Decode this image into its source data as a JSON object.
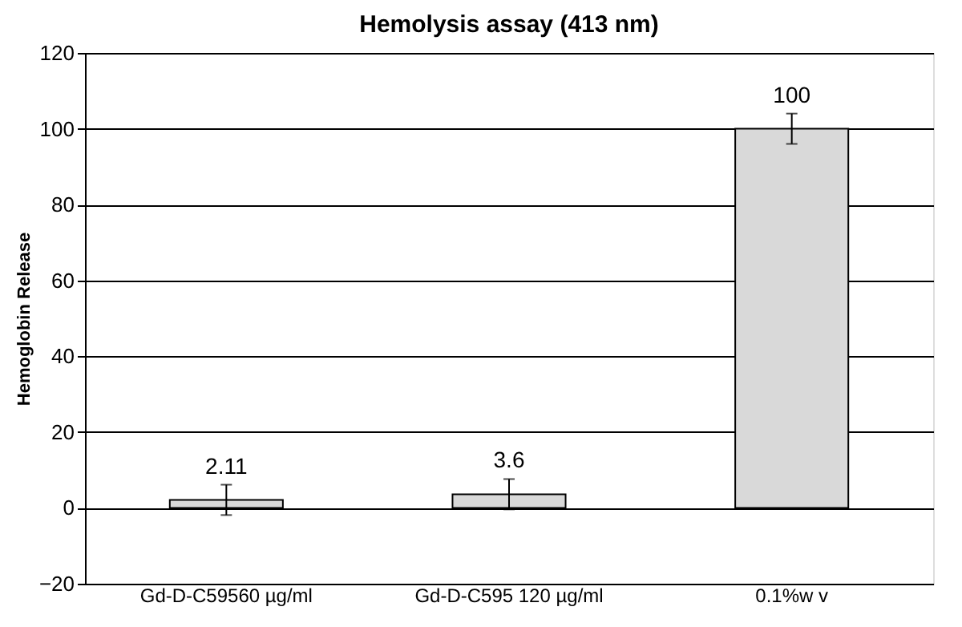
{
  "chart_data": {
    "type": "bar",
    "title": "Hemolysis assay (413 nm)",
    "ylabel": "Hemoglobin Release",
    "categories": [
      "Gd-D-C59560 µg/ml",
      "Gd-D-C595 120 µg/ml",
      "0.1%w v"
    ],
    "values": [
      2.11,
      3.6,
      100
    ],
    "errors": [
      4,
      4,
      4
    ],
    "color": "#d9d9d9",
    "ylim": [
      -20,
      120
    ],
    "yticks": [
      -20,
      0,
      20,
      40,
      60,
      80,
      100,
      120
    ],
    "grid": "y",
    "data_labels": true
  }
}
